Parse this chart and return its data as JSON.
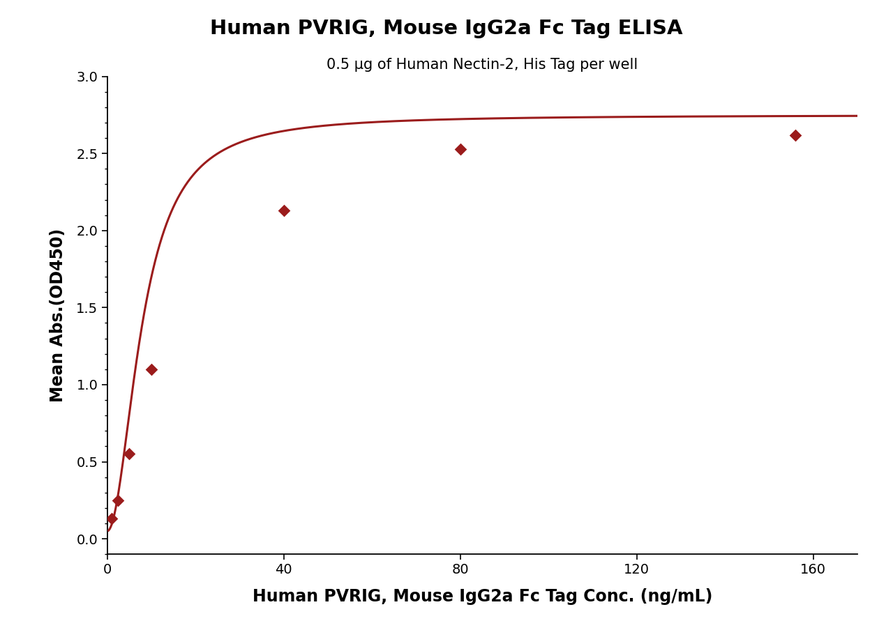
{
  "title": "Human PVRIG, Mouse IgG2a Fc Tag ELISA",
  "subtitle": "0.5 μg of Human Nectin-2, His Tag per well",
  "xlabel": "Human PVRIG, Mouse IgG2a Fc Tag Conc. (ng/mL)",
  "ylabel": "Mean Abs.(OD450)",
  "x_data": [
    1.0,
    2.5,
    5.0,
    10.0,
    40.0,
    80.0,
    156.0
  ],
  "y_data": [
    0.13,
    0.25,
    0.55,
    1.1,
    2.13,
    2.53,
    2.62
  ],
  "xlim": [
    0,
    170
  ],
  "ylim": [
    -0.1,
    3.0
  ],
  "xticks": [
    0,
    40,
    80,
    120,
    160
  ],
  "yticks": [
    0.0,
    0.5,
    1.0,
    1.5,
    2.0,
    2.5,
    3.0
  ],
  "color": "#9B1C1C",
  "marker": "D",
  "marker_size": 9,
  "line_width": 2.2,
  "title_fontsize": 21,
  "subtitle_fontsize": 15,
  "axis_label_fontsize": 17,
  "tick_fontsize": 14,
  "background_color": "#ffffff"
}
